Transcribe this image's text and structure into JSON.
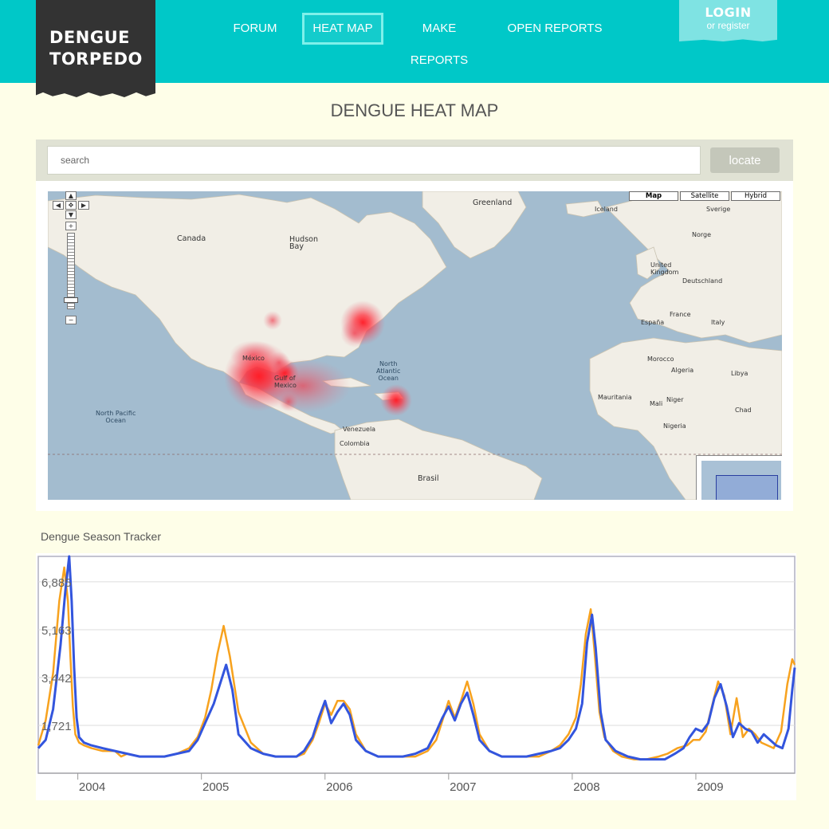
{
  "header": {
    "logo_line1": "DENGUE",
    "logo_line2": "TORPEDO",
    "nav": [
      {
        "label": "FORUM"
      },
      {
        "label": "HEAT MAP",
        "active": true
      },
      {
        "label": "MAKE REPORTS"
      },
      {
        "label": "OPEN REPORTS"
      }
    ],
    "login_title": "LOGIN",
    "login_sub": "or register"
  },
  "page_title": "DENGUE HEAT MAP",
  "search": {
    "placeholder": "search",
    "button_label": "locate"
  },
  "map": {
    "map_types": [
      "Map",
      "Satellite",
      "Hybrid"
    ],
    "active_type": "Map",
    "ocean_color": "#a3bccf",
    "land_color": "#f1eee6",
    "heat_color": "#ff1e28"
  },
  "tracker": {
    "title": "Dengue Season Tracker",
    "colors": {
      "blue": "#3355dd",
      "orange": "#f7a21e",
      "grid": "#dddddd"
    }
  },
  "chart_data": {
    "type": "line",
    "title": "Dengue Season Tracker",
    "xlabel": "",
    "ylabel": "",
    "y_tick_labels": [
      "6,885",
      "5,163",
      "3,442",
      "1,721"
    ],
    "y_ticks": [
      6885,
      5163,
      3442,
      1721
    ],
    "ylim": [
      0,
      7800
    ],
    "x_tick_labels": [
      "2004",
      "2005",
      "2006",
      "2007",
      "2008",
      "2009"
    ],
    "xlim": [
      2003.63,
      2009.75
    ],
    "grid": true,
    "legend": "none",
    "series": [
      {
        "color": "#3355dd",
        "x": [
          2003.63,
          2003.69,
          2003.75,
          2003.81,
          2003.85,
          2003.88,
          2003.9,
          2003.92,
          2003.94,
          2003.96,
          2004.0,
          2004.06,
          2004.15,
          2004.25,
          2004.35,
          2004.45,
          2004.55,
          2004.65,
          2004.75,
          2004.85,
          2004.92,
          2004.98,
          2005.05,
          2005.1,
          2005.15,
          2005.2,
          2005.25,
          2005.35,
          2005.45,
          2005.55,
          2005.65,
          2005.72,
          2005.78,
          2005.85,
          2005.9,
          2005.95,
          2006.0,
          2006.05,
          2006.1,
          2006.15,
          2006.2,
          2006.28,
          2006.38,
          2006.48,
          2006.58,
          2006.68,
          2006.78,
          2006.85,
          2006.9,
          2006.95,
          2007.0,
          2007.05,
          2007.1,
          2007.15,
          2007.2,
          2007.28,
          2007.38,
          2007.48,
          2007.58,
          2007.68,
          2007.78,
          2007.85,
          2007.92,
          2007.98,
          2008.03,
          2008.07,
          2008.11,
          2008.14,
          2008.18,
          2008.22,
          2008.3,
          2008.4,
          2008.5,
          2008.6,
          2008.7,
          2008.78,
          2008.85,
          2008.9,
          2008.95,
          2009.0,
          2009.05,
          2009.1,
          2009.15,
          2009.2,
          2009.25,
          2009.3,
          2009.35,
          2009.4,
          2009.45,
          2009.5,
          2009.55,
          2009.6,
          2009.65,
          2009.7,
          2009.73,
          2009.75
        ],
        "y": [
          900,
          1200,
          2300,
          4600,
          6600,
          7800,
          6200,
          3800,
          2000,
          1300,
          1100,
          1000,
          900,
          800,
          700,
          600,
          600,
          600,
          700,
          800,
          1200,
          1800,
          2500,
          3200,
          3900,
          3000,
          1400,
          900,
          700,
          600,
          600,
          600,
          800,
          1300,
          2000,
          2600,
          1800,
          2200,
          2500,
          2100,
          1200,
          800,
          600,
          600,
          600,
          700,
          900,
          1500,
          2000,
          2400,
          1900,
          2500,
          2900,
          2100,
          1200,
          800,
          600,
          600,
          600,
          700,
          800,
          900,
          1200,
          1600,
          2500,
          4700,
          5700,
          4500,
          2200,
          1200,
          800,
          600,
          500,
          500,
          500,
          700,
          900,
          1300,
          1600,
          1500,
          1800,
          2700,
          3200,
          2400,
          1300,
          1800,
          1600,
          1500,
          1100,
          1400,
          1200,
          1000,
          900,
          1600,
          3000,
          3800
        ]
      },
      {
        "color": "#f7a21e",
        "x": [
          2003.63,
          2003.69,
          2003.75,
          2003.8,
          2003.84,
          2003.87,
          2003.89,
          2003.91,
          2003.93,
          2003.96,
          2004.0,
          2004.06,
          2004.15,
          2004.25,
          2004.3,
          2004.35,
          2004.45,
          2004.55,
          2004.65,
          2004.75,
          2004.85,
          2004.92,
          2004.98,
          2005.03,
          2005.08,
          2005.13,
          2005.18,
          2005.25,
          2005.35,
          2005.45,
          2005.55,
          2005.65,
          2005.72,
          2005.78,
          2005.85,
          2005.9,
          2005.95,
          2006.0,
          2006.05,
          2006.1,
          2006.15,
          2006.2,
          2006.28,
          2006.38,
          2006.48,
          2006.58,
          2006.68,
          2006.78,
          2006.85,
          2006.9,
          2006.95,
          2007.0,
          2007.05,
          2007.1,
          2007.15,
          2007.2,
          2007.28,
          2007.38,
          2007.48,
          2007.58,
          2007.68,
          2007.78,
          2007.85,
          2007.92,
          2007.98,
          2008.02,
          2008.06,
          2008.1,
          2008.13,
          2008.17,
          2008.21,
          2008.28,
          2008.35,
          2008.45,
          2008.55,
          2008.65,
          2008.72,
          2008.8,
          2008.88,
          2008.93,
          2008.98,
          2009.03,
          2009.08,
          2009.13,
          2009.18,
          2009.23,
          2009.28,
          2009.33,
          2009.38,
          2009.43,
          2009.48,
          2009.53,
          2009.58,
          2009.64,
          2009.69,
          2009.73,
          2009.75
        ],
        "y": [
          1000,
          1900,
          3600,
          6200,
          7400,
          6200,
          4200,
          2400,
          1400,
          1100,
          1000,
          900,
          800,
          800,
          600,
          700,
          600,
          600,
          600,
          700,
          900,
          1300,
          2000,
          3000,
          4300,
          5300,
          4200,
          2200,
          1100,
          700,
          600,
          600,
          600,
          700,
          1200,
          1800,
          2500,
          2100,
          2600,
          2600,
          2300,
          1400,
          800,
          600,
          600,
          600,
          600,
          800,
          1200,
          1900,
          2600,
          2000,
          2600,
          3300,
          2500,
          1400,
          800,
          600,
          600,
          600,
          600,
          800,
          1000,
          1400,
          2000,
          3200,
          5000,
          5900,
          4400,
          2200,
          1300,
          800,
          600,
          500,
          500,
          600,
          700,
          900,
          1000,
          1200,
          1200,
          1500,
          2400,
          3300,
          2800,
          1400,
          2700,
          1300,
          1600,
          1400,
          1100,
          1000,
          900,
          1500,
          3200,
          4100,
          3900
        ]
      }
    ]
  }
}
